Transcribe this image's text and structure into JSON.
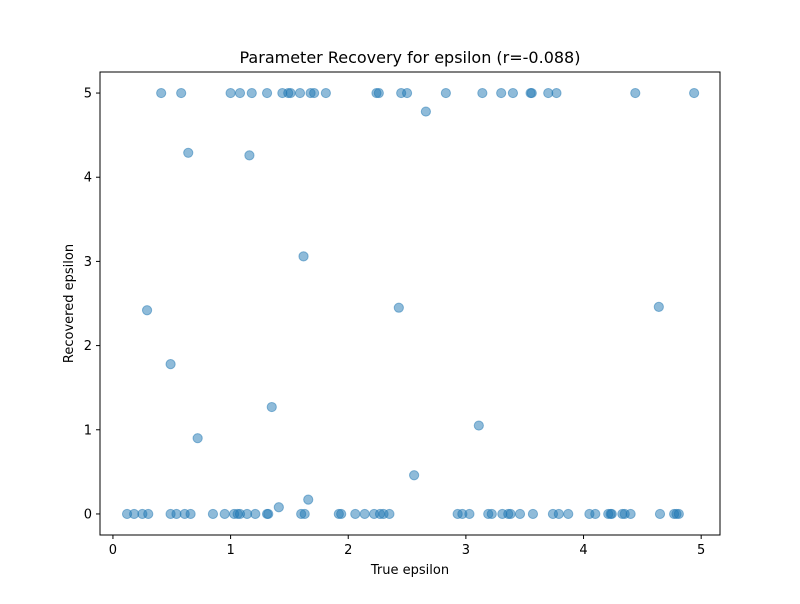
{
  "chart_data": {
    "type": "scatter",
    "title": "Parameter Recovery for epsilon (r=-0.088)",
    "xlabel": "True epsilon",
    "ylabel": "Recovered epsilon",
    "xlim": [
      -0.11,
      5.16
    ],
    "ylim": [
      -0.25,
      5.25
    ],
    "xticks": [
      0,
      1,
      2,
      3,
      4,
      5
    ],
    "yticks": [
      0,
      1,
      2,
      3,
      4,
      5
    ],
    "grid": false,
    "marker_color": "#1f77b4",
    "marker_alpha": 0.5,
    "points": [
      [
        0.41,
        5.0
      ],
      [
        0.58,
        5.0
      ],
      [
        1.0,
        5.0
      ],
      [
        1.08,
        5.0
      ],
      [
        1.18,
        5.0
      ],
      [
        1.31,
        5.0
      ],
      [
        1.44,
        5.0
      ],
      [
        1.49,
        5.0
      ],
      [
        1.51,
        5.0
      ],
      [
        1.59,
        5.0
      ],
      [
        1.68,
        5.0
      ],
      [
        1.71,
        5.0
      ],
      [
        1.81,
        5.0
      ],
      [
        2.24,
        5.0
      ],
      [
        2.26,
        5.0
      ],
      [
        2.45,
        5.0
      ],
      [
        2.5,
        5.0
      ],
      [
        2.83,
        5.0
      ],
      [
        3.14,
        5.0
      ],
      [
        3.3,
        5.0
      ],
      [
        3.4,
        5.0
      ],
      [
        3.55,
        5.0
      ],
      [
        3.56,
        5.0
      ],
      [
        3.7,
        5.0
      ],
      [
        3.77,
        5.0
      ],
      [
        4.44,
        5.0
      ],
      [
        4.94,
        5.0
      ],
      [
        2.66,
        4.78
      ],
      [
        0.64,
        4.29
      ],
      [
        1.16,
        4.26
      ],
      [
        1.62,
        3.06
      ],
      [
        0.29,
        2.42
      ],
      [
        2.43,
        2.45
      ],
      [
        4.64,
        2.46
      ],
      [
        0.49,
        1.78
      ],
      [
        1.35,
        1.27
      ],
      [
        3.11,
        1.05
      ],
      [
        0.72,
        0.9
      ],
      [
        2.56,
        0.46
      ],
      [
        1.66,
        0.17
      ],
      [
        1.41,
        0.08
      ],
      [
        0.12,
        0.0
      ],
      [
        0.18,
        0.0
      ],
      [
        0.25,
        0.0
      ],
      [
        0.3,
        0.0
      ],
      [
        0.49,
        0.0
      ],
      [
        0.54,
        0.0
      ],
      [
        0.61,
        0.0
      ],
      [
        0.66,
        0.0
      ],
      [
        0.85,
        0.0
      ],
      [
        0.95,
        0.0
      ],
      [
        1.03,
        0.0
      ],
      [
        1.06,
        0.0
      ],
      [
        1.08,
        0.0
      ],
      [
        1.14,
        0.0
      ],
      [
        1.21,
        0.0
      ],
      [
        1.31,
        0.0
      ],
      [
        1.32,
        0.0
      ],
      [
        1.6,
        0.0
      ],
      [
        1.63,
        0.0
      ],
      [
        1.92,
        0.0
      ],
      [
        1.94,
        0.0
      ],
      [
        2.06,
        0.0
      ],
      [
        2.14,
        0.0
      ],
      [
        2.22,
        0.0
      ],
      [
        2.27,
        0.0
      ],
      [
        2.3,
        0.0
      ],
      [
        2.35,
        0.0
      ],
      [
        2.93,
        0.0
      ],
      [
        2.97,
        0.0
      ],
      [
        3.03,
        0.0
      ],
      [
        3.19,
        0.0
      ],
      [
        3.22,
        0.0
      ],
      [
        3.31,
        0.0
      ],
      [
        3.36,
        0.0
      ],
      [
        3.38,
        0.0
      ],
      [
        3.46,
        0.0
      ],
      [
        3.57,
        0.0
      ],
      [
        3.74,
        0.0
      ],
      [
        3.79,
        0.0
      ],
      [
        3.87,
        0.0
      ],
      [
        4.05,
        0.0
      ],
      [
        4.1,
        0.0
      ],
      [
        4.21,
        0.0
      ],
      [
        4.23,
        0.0
      ],
      [
        4.24,
        0.0
      ],
      [
        4.33,
        0.0
      ],
      [
        4.35,
        0.0
      ],
      [
        4.4,
        0.0
      ],
      [
        4.65,
        0.0
      ],
      [
        4.77,
        0.0
      ],
      [
        4.79,
        0.0
      ],
      [
        4.81,
        0.0
      ]
    ]
  }
}
